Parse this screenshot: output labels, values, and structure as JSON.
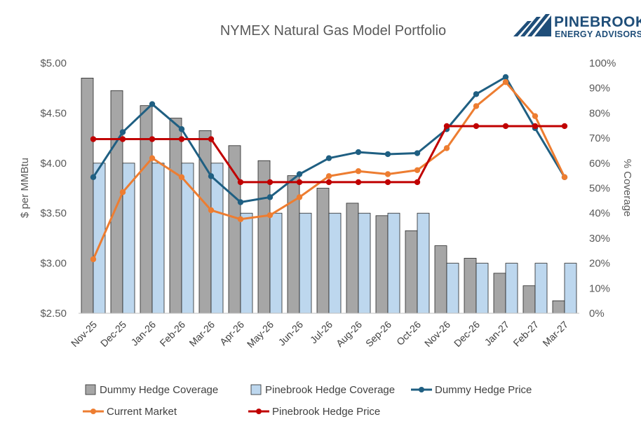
{
  "chart_data": {
    "type": "bar",
    "title": "NYMEX Natural Gas Model Portfolio",
    "ylabel_left": "$ per MMBtu",
    "ylabel_right": "% Coverage",
    "ylim_left": [
      2.5,
      5.0
    ],
    "ylim_right": [
      0,
      100
    ],
    "left_ticks": [
      {
        "value": 2.5,
        "label": "$2.50"
      },
      {
        "value": 3.0,
        "label": "$3.00"
      },
      {
        "value": 3.5,
        "label": "$3.50"
      },
      {
        "value": 4.0,
        "label": "$4.00"
      },
      {
        "value": 4.5,
        "label": "$4.50"
      },
      {
        "value": 5.0,
        "label": "$5.00"
      }
    ],
    "right_ticks": [
      {
        "value": 0,
        "label": "0%"
      },
      {
        "value": 10,
        "label": "10%"
      },
      {
        "value": 20,
        "label": "20%"
      },
      {
        "value": 30,
        "label": "30%"
      },
      {
        "value": 40,
        "label": "40%"
      },
      {
        "value": 50,
        "label": "50%"
      },
      {
        "value": 60,
        "label": "60%"
      },
      {
        "value": 70,
        "label": "70%"
      },
      {
        "value": 80,
        "label": "80%"
      },
      {
        "value": 90,
        "label": "90%"
      },
      {
        "value": 100,
        "label": "100%"
      }
    ],
    "categories": [
      "Nov-25",
      "Dec-25",
      "Jan-26",
      "Feb-26",
      "Mar-26",
      "Apr-26",
      "May-26",
      "Jun-26",
      "Jul-26",
      "Aug-26",
      "Sep-26",
      "Oct-26",
      "Nov-26",
      "Dec-26",
      "Jan-27",
      "Feb-27",
      "Mar-27"
    ],
    "bar_series": [
      {
        "name": "Dummy Hedge Coverage",
        "axis": "right",
        "color": "#a6a6a6",
        "values": [
          94,
          89,
          83,
          78,
          73,
          67,
          61,
          55,
          50,
          44,
          39,
          33,
          27,
          22,
          16,
          11,
          5
        ]
      },
      {
        "name": "Pinebrook Hedge Coverage",
        "axis": "right",
        "color": "#bdd7ee",
        "values": [
          60,
          60,
          60,
          60,
          60,
          40,
          40,
          40,
          40,
          40,
          40,
          40,
          20,
          20,
          20,
          20,
          20
        ]
      }
    ],
    "line_series": [
      {
        "name": "Dummy Hedge Price",
        "axis": "left",
        "color": "#1f5f82",
        "values": [
          3.86,
          4.31,
          4.59,
          4.34,
          3.87,
          3.61,
          3.66,
          3.89,
          4.05,
          4.11,
          4.09,
          4.1,
          4.34,
          4.69,
          4.86,
          4.35,
          3.86
        ]
      },
      {
        "name": "Current Market",
        "axis": "left",
        "color": "#ed7d31",
        "values": [
          3.04,
          3.71,
          4.05,
          3.86,
          3.53,
          3.44,
          3.48,
          3.66,
          3.87,
          3.92,
          3.89,
          3.93,
          4.15,
          4.57,
          4.81,
          4.47,
          3.86
        ]
      },
      {
        "name": "Pinebrook Hedge Price",
        "axis": "left",
        "color": "#c00000",
        "values": [
          4.24,
          4.24,
          4.24,
          4.24,
          4.24,
          3.81,
          3.81,
          3.81,
          3.81,
          3.81,
          3.81,
          3.81,
          4.37,
          4.37,
          4.37,
          4.37,
          4.37
        ]
      }
    ],
    "legend": [
      {
        "name": "Dummy Hedge Coverage",
        "kind": "bar",
        "color": "#a6a6a6"
      },
      {
        "name": "Pinebrook Hedge Coverage",
        "kind": "bar",
        "color": "#bdd7ee"
      },
      {
        "name": "Dummy Hedge Price",
        "kind": "line",
        "color": "#1f5f82"
      },
      {
        "name": "Current Market",
        "kind": "line",
        "color": "#ed7d31"
      },
      {
        "name": "Pinebrook Hedge Price",
        "kind": "line",
        "color": "#c00000"
      }
    ],
    "legend_position": "bottom",
    "grid": false
  },
  "logo": {
    "name": "PINEBROOK",
    "subtitle": "ENERGY ADVISORS",
    "color": "#1f4e79"
  }
}
